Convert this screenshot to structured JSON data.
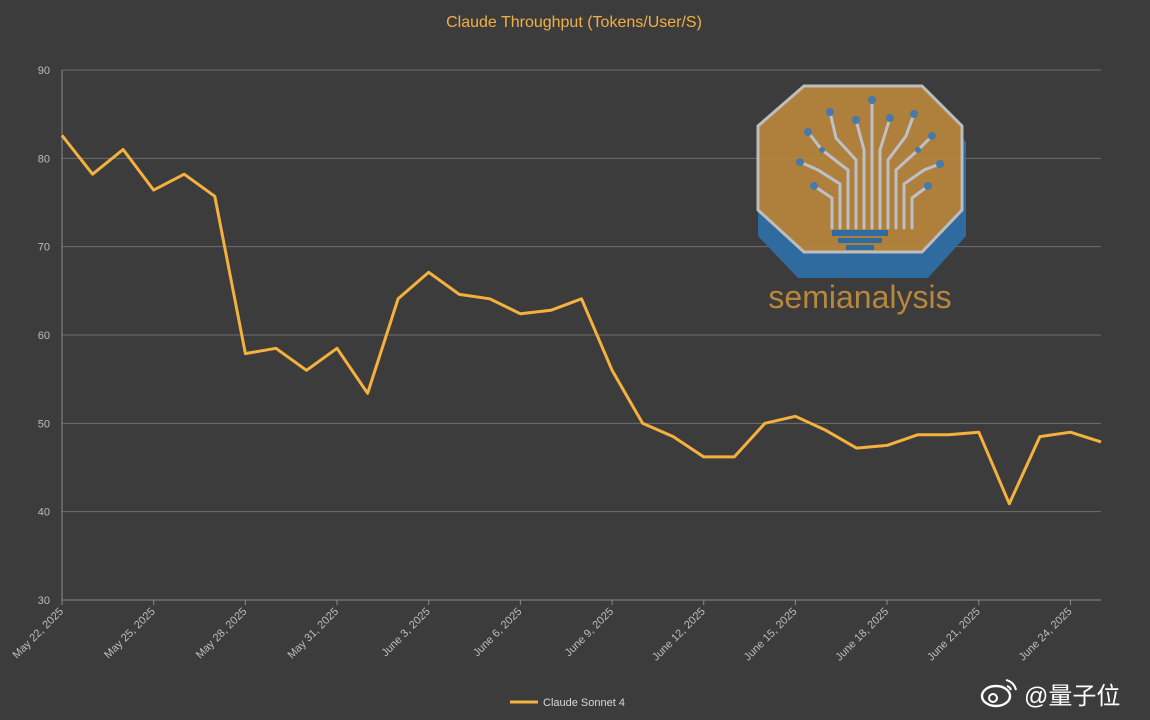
{
  "chart_data": {
    "type": "line",
    "title": "Claude Throughput (Tokens/User/S)",
    "xlabel": "",
    "ylabel": "",
    "ylim": [
      30,
      90
    ],
    "yticks": [
      30,
      40,
      50,
      60,
      70,
      80,
      90
    ],
    "grid": true,
    "legend_position": "bottom-center",
    "x": [
      "May 22, 2025",
      "May 23, 2025",
      "May 24, 2025",
      "May 25, 2025",
      "May 26, 2025",
      "May 27, 2025",
      "May 28, 2025",
      "May 29, 2025",
      "May 30, 2025",
      "May 31, 2025",
      "June 1, 2025",
      "June 2, 2025",
      "June 3, 2025",
      "June 4, 2025",
      "June 5, 2025",
      "June 6, 2025",
      "June 7, 2025",
      "June 8, 2025",
      "June 9, 2025",
      "June 10, 2025",
      "June 11, 2025",
      "June 12, 2025",
      "June 13, 2025",
      "June 14, 2025",
      "June 15, 2025",
      "June 16, 2025",
      "June 17, 2025",
      "June 18, 2025",
      "June 19, 2025",
      "June 20, 2025",
      "June 21, 2025",
      "June 22, 2025",
      "June 23, 2025",
      "June 24, 2025",
      "June 25, 2025"
    ],
    "xtick_labels": [
      "May 22, 2025",
      "May 25, 2025",
      "May 28, 2025",
      "May 31, 2025",
      "June 3, 2025",
      "June 6, 2025",
      "June 9, 2025",
      "June 12, 2025",
      "June 15, 2025",
      "June 18, 2025",
      "June 21, 2025",
      "June 24, 2025"
    ],
    "series": [
      {
        "name": "Claude Sonnet 4",
        "color": "#f5b13d",
        "values": [
          82.6,
          78.2,
          81.0,
          76.4,
          78.2,
          75.7,
          57.9,
          58.5,
          56.0,
          58.5,
          53.4,
          64.1,
          67.1,
          64.6,
          64.1,
          62.4,
          62.8,
          64.1,
          56.0,
          50.0,
          48.5,
          46.2,
          46.2,
          50.0,
          50.8,
          49.2,
          47.2,
          47.5,
          48.7,
          48.7,
          49.0,
          40.9,
          48.5,
          49.0,
          47.9
        ]
      }
    ]
  },
  "watermarks": {
    "semianalysis_text": "semianalysis",
    "semianalysis_icon": "circuit-tree-logo",
    "weibo_handle": "@量子位",
    "weibo_icon": "weibo-icon"
  }
}
